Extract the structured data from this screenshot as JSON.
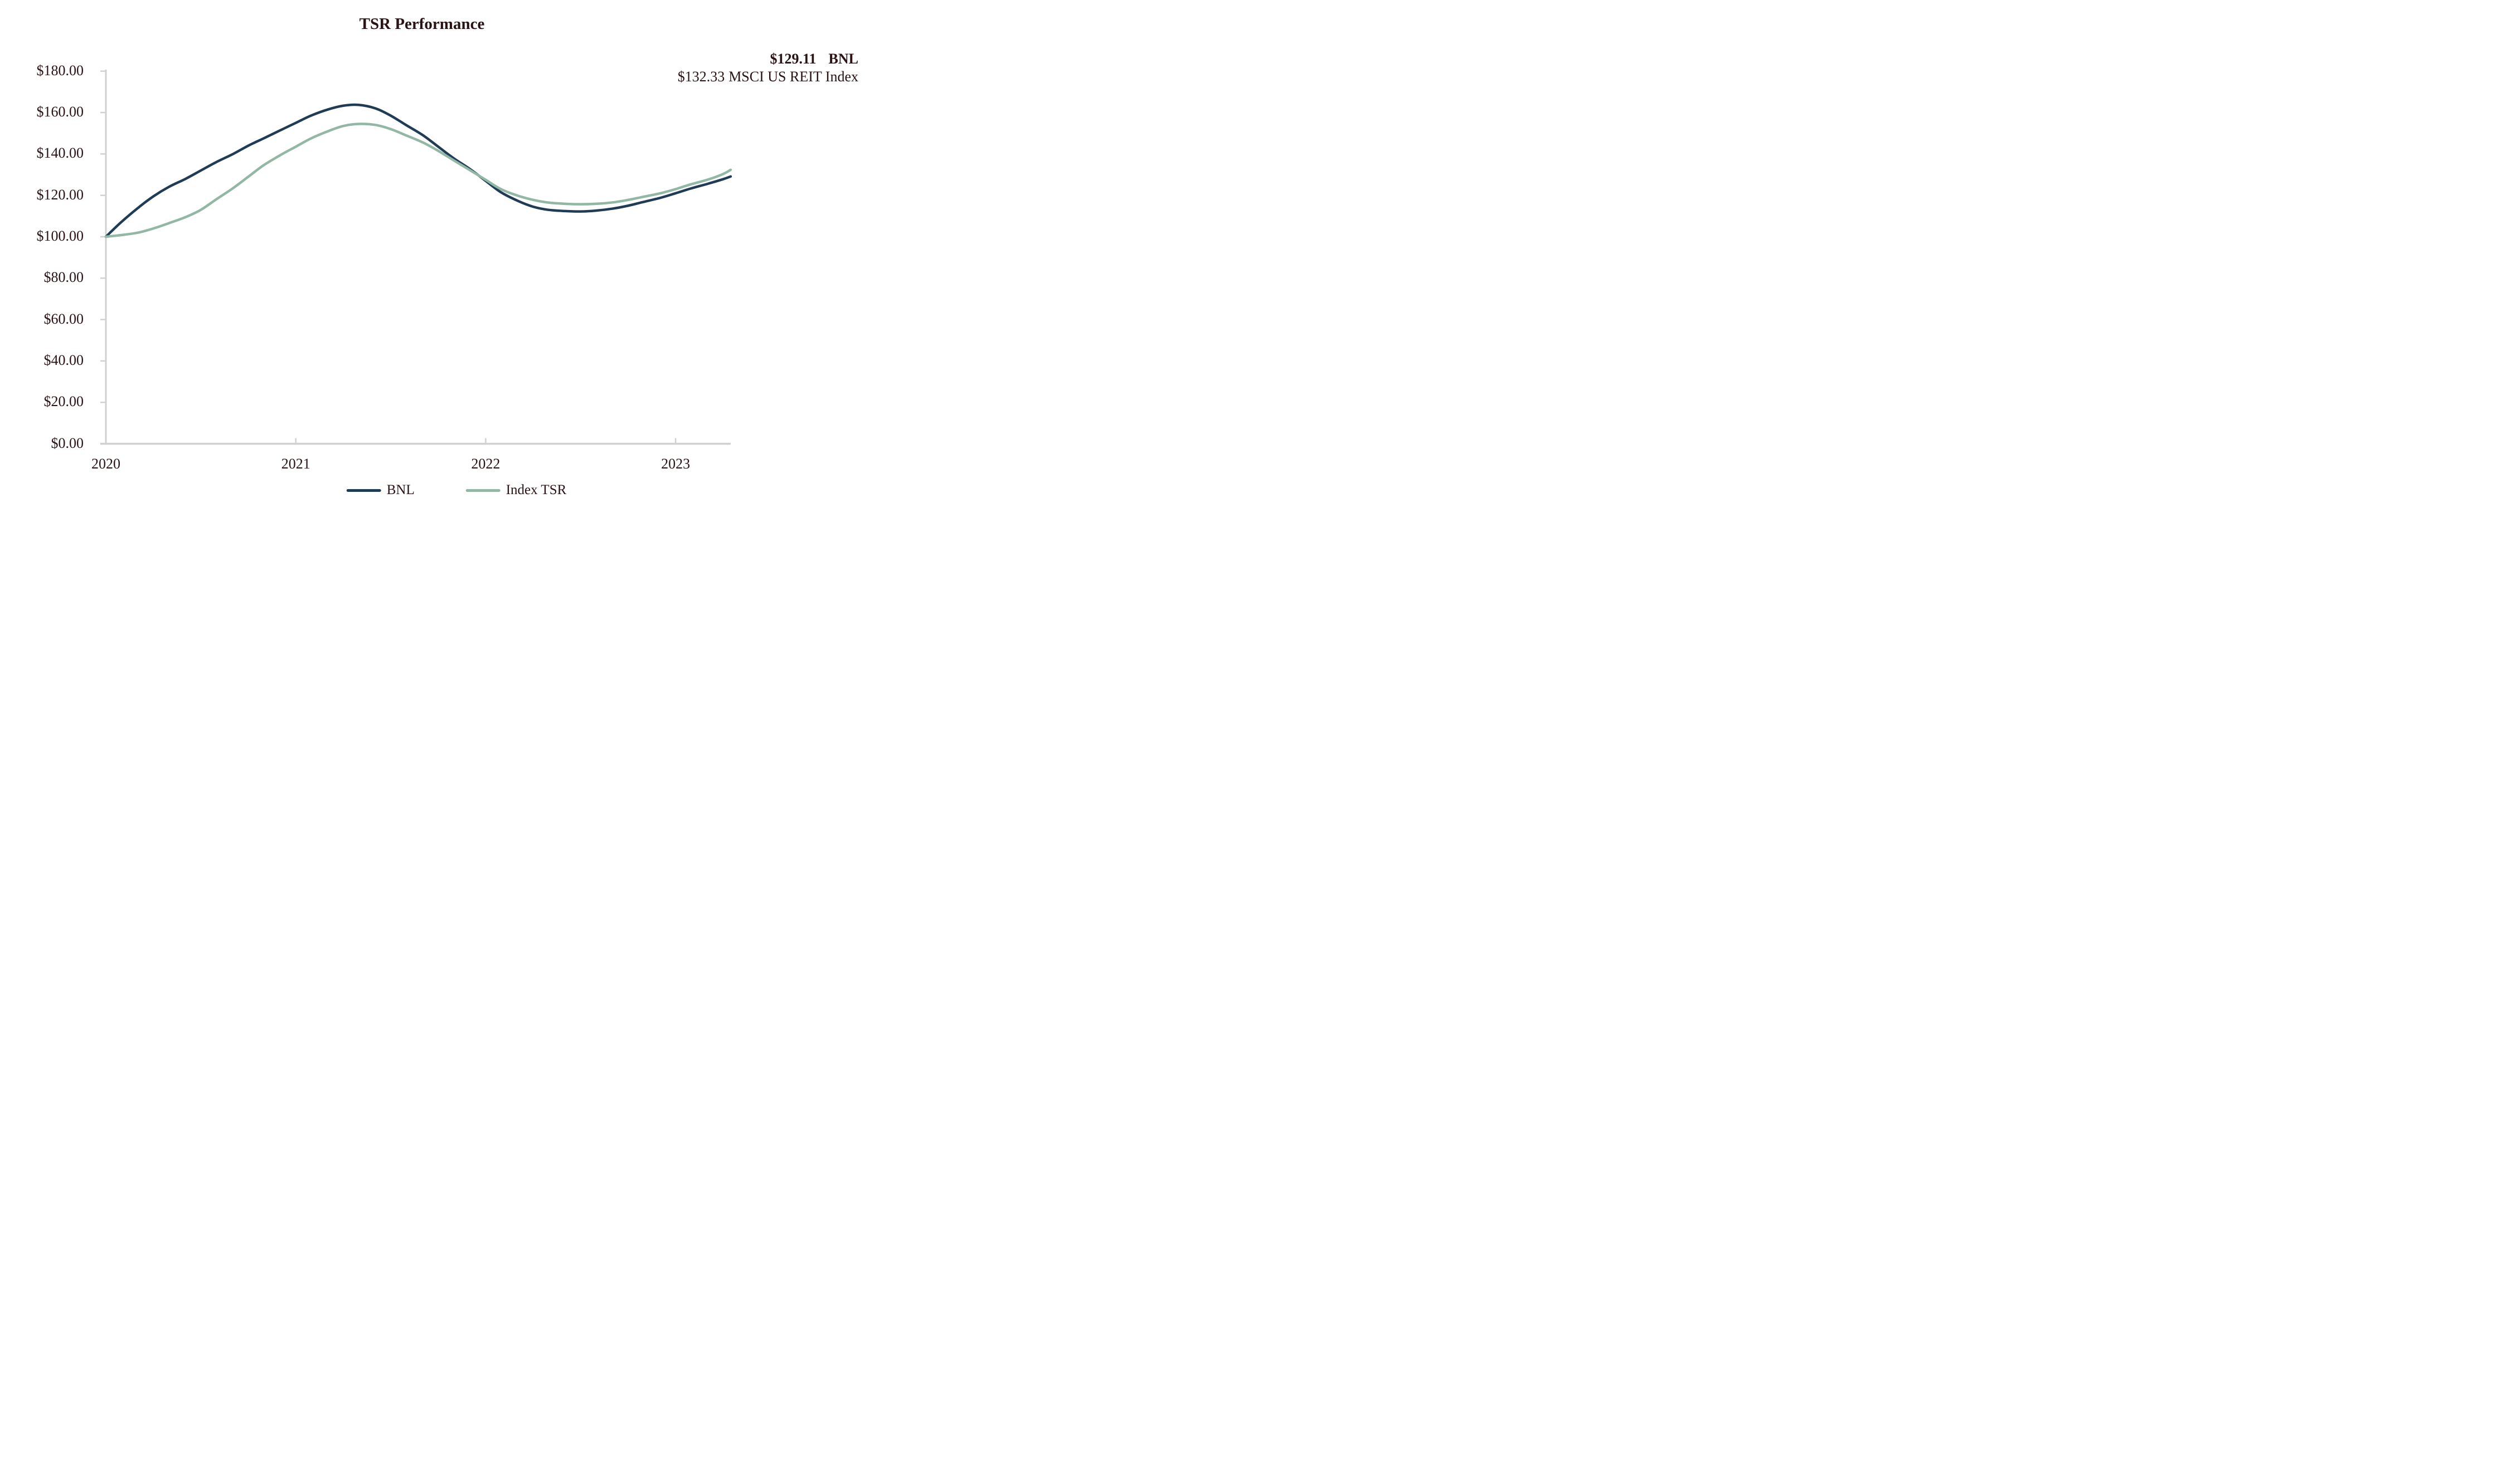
{
  "title": "TSR Performance",
  "annotations": {
    "bnl_value": "$129.11",
    "bnl_label": "BNL",
    "index_value": "$132.33",
    "index_label": "MSCI US REIT Index"
  },
  "colors": {
    "bnl_line": "#1F3B55",
    "index_line": "#93B7A5",
    "axis": "#D1D1D1",
    "text": "#2A1215",
    "background": "#FFFFFF"
  },
  "legend": [
    {
      "label": "BNL",
      "color": "#1F3B55"
    },
    {
      "label": "Index TSR",
      "color": "#93B7A5"
    }
  ],
  "chart_data": {
    "type": "line",
    "title": "TSR Performance",
    "xlabel": "",
    "ylabel": "",
    "grid": false,
    "legend_position": "bottom",
    "x_axis": {
      "tick_values": [
        2020,
        2021,
        2022,
        2023
      ],
      "tick_labels": [
        "2020",
        "2021",
        "2022",
        "2023"
      ],
      "range": [
        2020,
        2023.29
      ]
    },
    "y_axis": {
      "tick_values": [
        0,
        20,
        40,
        60,
        80,
        100,
        120,
        140,
        160,
        180
      ],
      "tick_labels": [
        "$0.00",
        "$20.00",
        "$40.00",
        "$60.00",
        "$80.00",
        "$100.00",
        "$120.00",
        "$140.00",
        "$160.00",
        "$180.00"
      ],
      "range": [
        0,
        180
      ],
      "tick_step": 20
    },
    "x": [
      2020.0,
      2020.08,
      2020.17,
      2020.25,
      2020.33,
      2020.42,
      2020.5,
      2020.58,
      2020.67,
      2020.75,
      2020.83,
      2020.92,
      2021.0,
      2021.08,
      2021.17,
      2021.25,
      2021.33,
      2021.42,
      2021.5,
      2021.58,
      2021.67,
      2021.75,
      2021.83,
      2021.92,
      2022.0,
      2022.08,
      2022.17,
      2022.25,
      2022.33,
      2022.42,
      2022.5,
      2022.58,
      2022.67,
      2022.75,
      2022.83,
      2022.92,
      2023.0,
      2023.08,
      2023.17,
      2023.25,
      2023.29
    ],
    "series": [
      {
        "name": "BNL",
        "color": "#1F3B55",
        "final_value": 129.11,
        "values": [
          100,
          107,
          114,
          119.5,
          124,
          128,
          132,
          136,
          140,
          144,
          147.5,
          151.5,
          155,
          158.5,
          161.5,
          163.3,
          163.7,
          162,
          158.5,
          154,
          149,
          143.5,
          138,
          132.5,
          127,
          121.5,
          117.3,
          114.5,
          113,
          112.4,
          112.2,
          112.6,
          113.6,
          115,
          116.8,
          118.8,
          121,
          123.3,
          125.6,
          127.8,
          129.11
        ]
      },
      {
        "name": "Index TSR",
        "color": "#93B7A5",
        "final_value": 132.33,
        "values": [
          100,
          100.8,
          102,
          104,
          106.5,
          109.5,
          113,
          118,
          123.5,
          129,
          134.5,
          139.5,
          143.5,
          147.5,
          151,
          153.5,
          154.5,
          154,
          152,
          149,
          145.5,
          141.5,
          137,
          132,
          127.5,
          123,
          119.8,
          117.8,
          116.5,
          115.9,
          115.7,
          115.9,
          116.6,
          117.8,
          119.3,
          121,
          123,
          125.3,
          127.6,
          130.3,
          132.33
        ]
      }
    ]
  }
}
